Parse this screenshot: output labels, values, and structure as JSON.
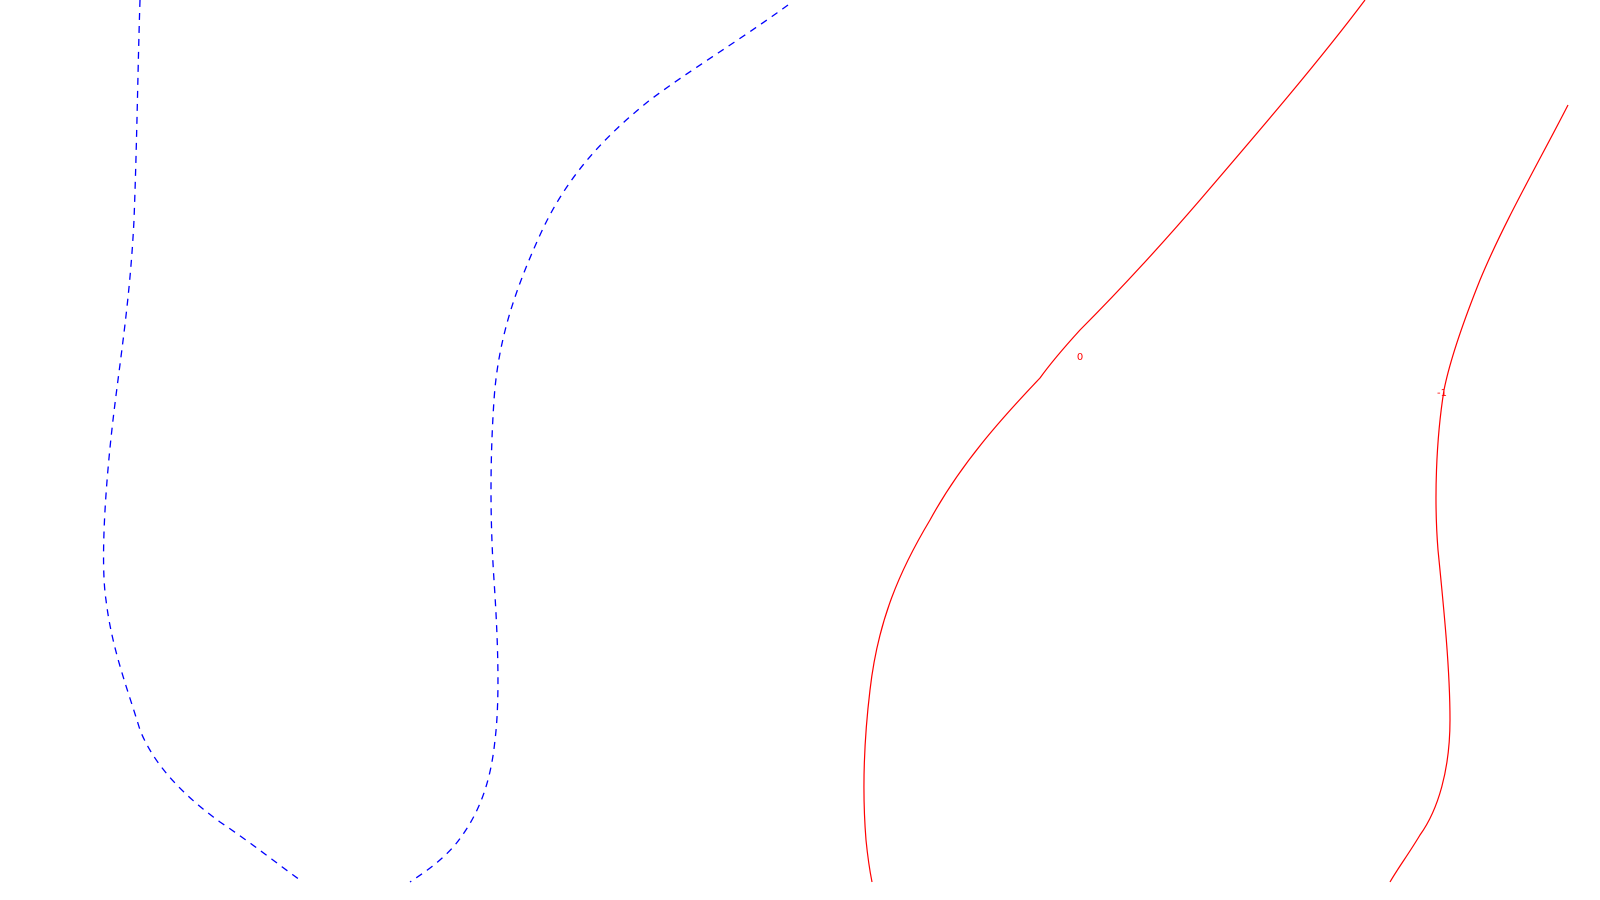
{
  "contours": [
    {
      "id": "dashed-left",
      "style": "dashed",
      "color": "#0000ff",
      "label": ""
    },
    {
      "id": "dashed-middle",
      "style": "dashed",
      "color": "#0000ff",
      "label": ""
    },
    {
      "id": "solid-zero",
      "style": "solid",
      "color": "#ff0000",
      "label": "0"
    },
    {
      "id": "solid-minus-one",
      "style": "solid",
      "color": "#ff0000",
      "label": "-1"
    }
  ]
}
